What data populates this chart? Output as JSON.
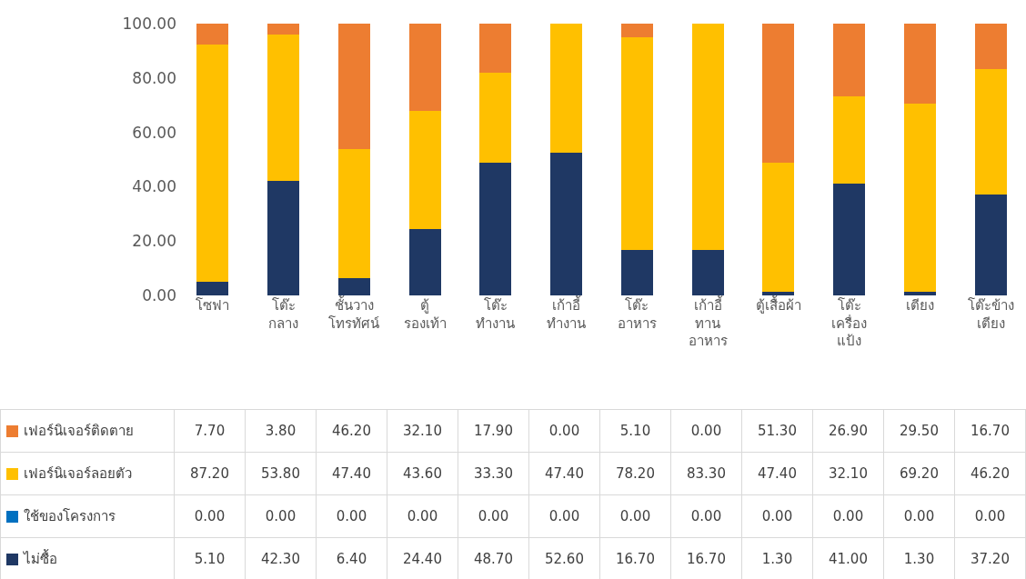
{
  "chart_data": {
    "type": "bar",
    "stacked": true,
    "legend": "bottom left",
    "categories": [
      "โซฟา",
      "โต๊ะ กลาง",
      "ชั้นวาง โทรทัศน์",
      "ตู้ รองเท้า",
      "โต๊ะ ทำงาน",
      "เก้าอี้ ทำงาน",
      "โต๊ะ อาหาร",
      "เก้าอี้ ทาน อาหาร",
      "ตู้เสื้อผ้า",
      "โต๊ะ เครื่อง แป้ง",
      "เตียง",
      "โต๊ะข้าง เตียง"
    ],
    "ylim": [
      0,
      102
    ],
    "yticks": [
      {
        "value": 0,
        "label": "0.00"
      },
      {
        "value": 20,
        "label": "20.00"
      },
      {
        "value": 40,
        "label": "40.00"
      },
      {
        "value": 60,
        "label": "60.00"
      },
      {
        "value": 80,
        "label": "80.00"
      },
      {
        "value": 100,
        "label": "100.00"
      }
    ],
    "series": [
      {
        "name": "ไม่ซื้อ",
        "color": "#1f3864",
        "values": [
          5.1,
          42.3,
          6.4,
          24.4,
          48.7,
          52.6,
          16.7,
          16.7,
          1.3,
          41.0,
          1.3,
          37.2
        ],
        "value_labels": [
          "5.10",
          "42.30",
          "6.40",
          "24.40",
          "48.70",
          "52.60",
          "16.70",
          "16.70",
          "1.30",
          "41.00",
          "1.30",
          "37.20"
        ]
      },
      {
        "name": "ใช้ของโครงการ",
        "color": "#0070c0",
        "values": [
          0,
          0,
          0,
          0,
          0,
          0,
          0,
          0,
          0,
          0,
          0,
          0
        ],
        "value_labels": [
          "0.00",
          "0.00",
          "0.00",
          "0.00",
          "0.00",
          "0.00",
          "0.00",
          "0.00",
          "0.00",
          "0.00",
          "0.00",
          "0.00"
        ]
      },
      {
        "name": "เฟอร์นิเจอร์ลอยตัว",
        "color": "#ffc000",
        "values": [
          87.2,
          53.8,
          47.4,
          43.6,
          33.3,
          47.4,
          78.2,
          83.3,
          47.4,
          32.1,
          69.2,
          46.2
        ],
        "value_labels": [
          "87.20",
          "53.80",
          "47.40",
          "43.60",
          "33.30",
          "47.40",
          "78.20",
          "83.30",
          "47.40",
          "32.10",
          "69.20",
          "46.20"
        ]
      },
      {
        "name": "เฟอร์นิเจอร์ติดตาย",
        "color": "#ed7d31",
        "values": [
          7.7,
          3.8,
          46.2,
          32.1,
          17.9,
          0.0,
          5.1,
          0.0,
          51.3,
          26.9,
          29.5,
          16.7
        ],
        "value_labels": [
          "7.70",
          "3.80",
          "46.20",
          "32.10",
          "17.90",
          "0.00",
          "5.10",
          "0.00",
          "51.30",
          "26.90",
          "29.50",
          "16.70"
        ]
      }
    ]
  }
}
